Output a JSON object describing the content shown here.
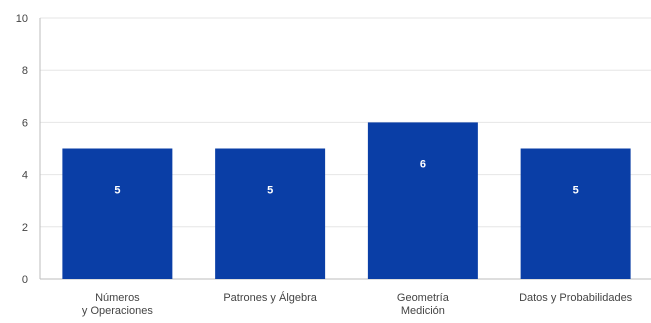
{
  "chart_data": {
    "type": "bar",
    "categories": [
      [
        "Números",
        "y Operaciones"
      ],
      [
        "Patrones y Álgebra"
      ],
      [
        "Geometría",
        "Medición"
      ],
      [
        "Datos y Probabilidades"
      ]
    ],
    "values": [
      5,
      5,
      6,
      5
    ],
    "data_labels": [
      "5",
      "5",
      "6",
      "5"
    ],
    "ylim": [
      0,
      10
    ],
    "yticks": [
      0,
      2,
      4,
      6,
      8,
      10
    ],
    "title": "",
    "xlabel": "",
    "ylabel": "",
    "grid": true,
    "legend": "none",
    "colors": {
      "bar": "#0a3ea6",
      "grid": "#e6e6e6",
      "axis": "#bdbdbd",
      "text": "#444444",
      "data_label": "#ffffff"
    }
  }
}
